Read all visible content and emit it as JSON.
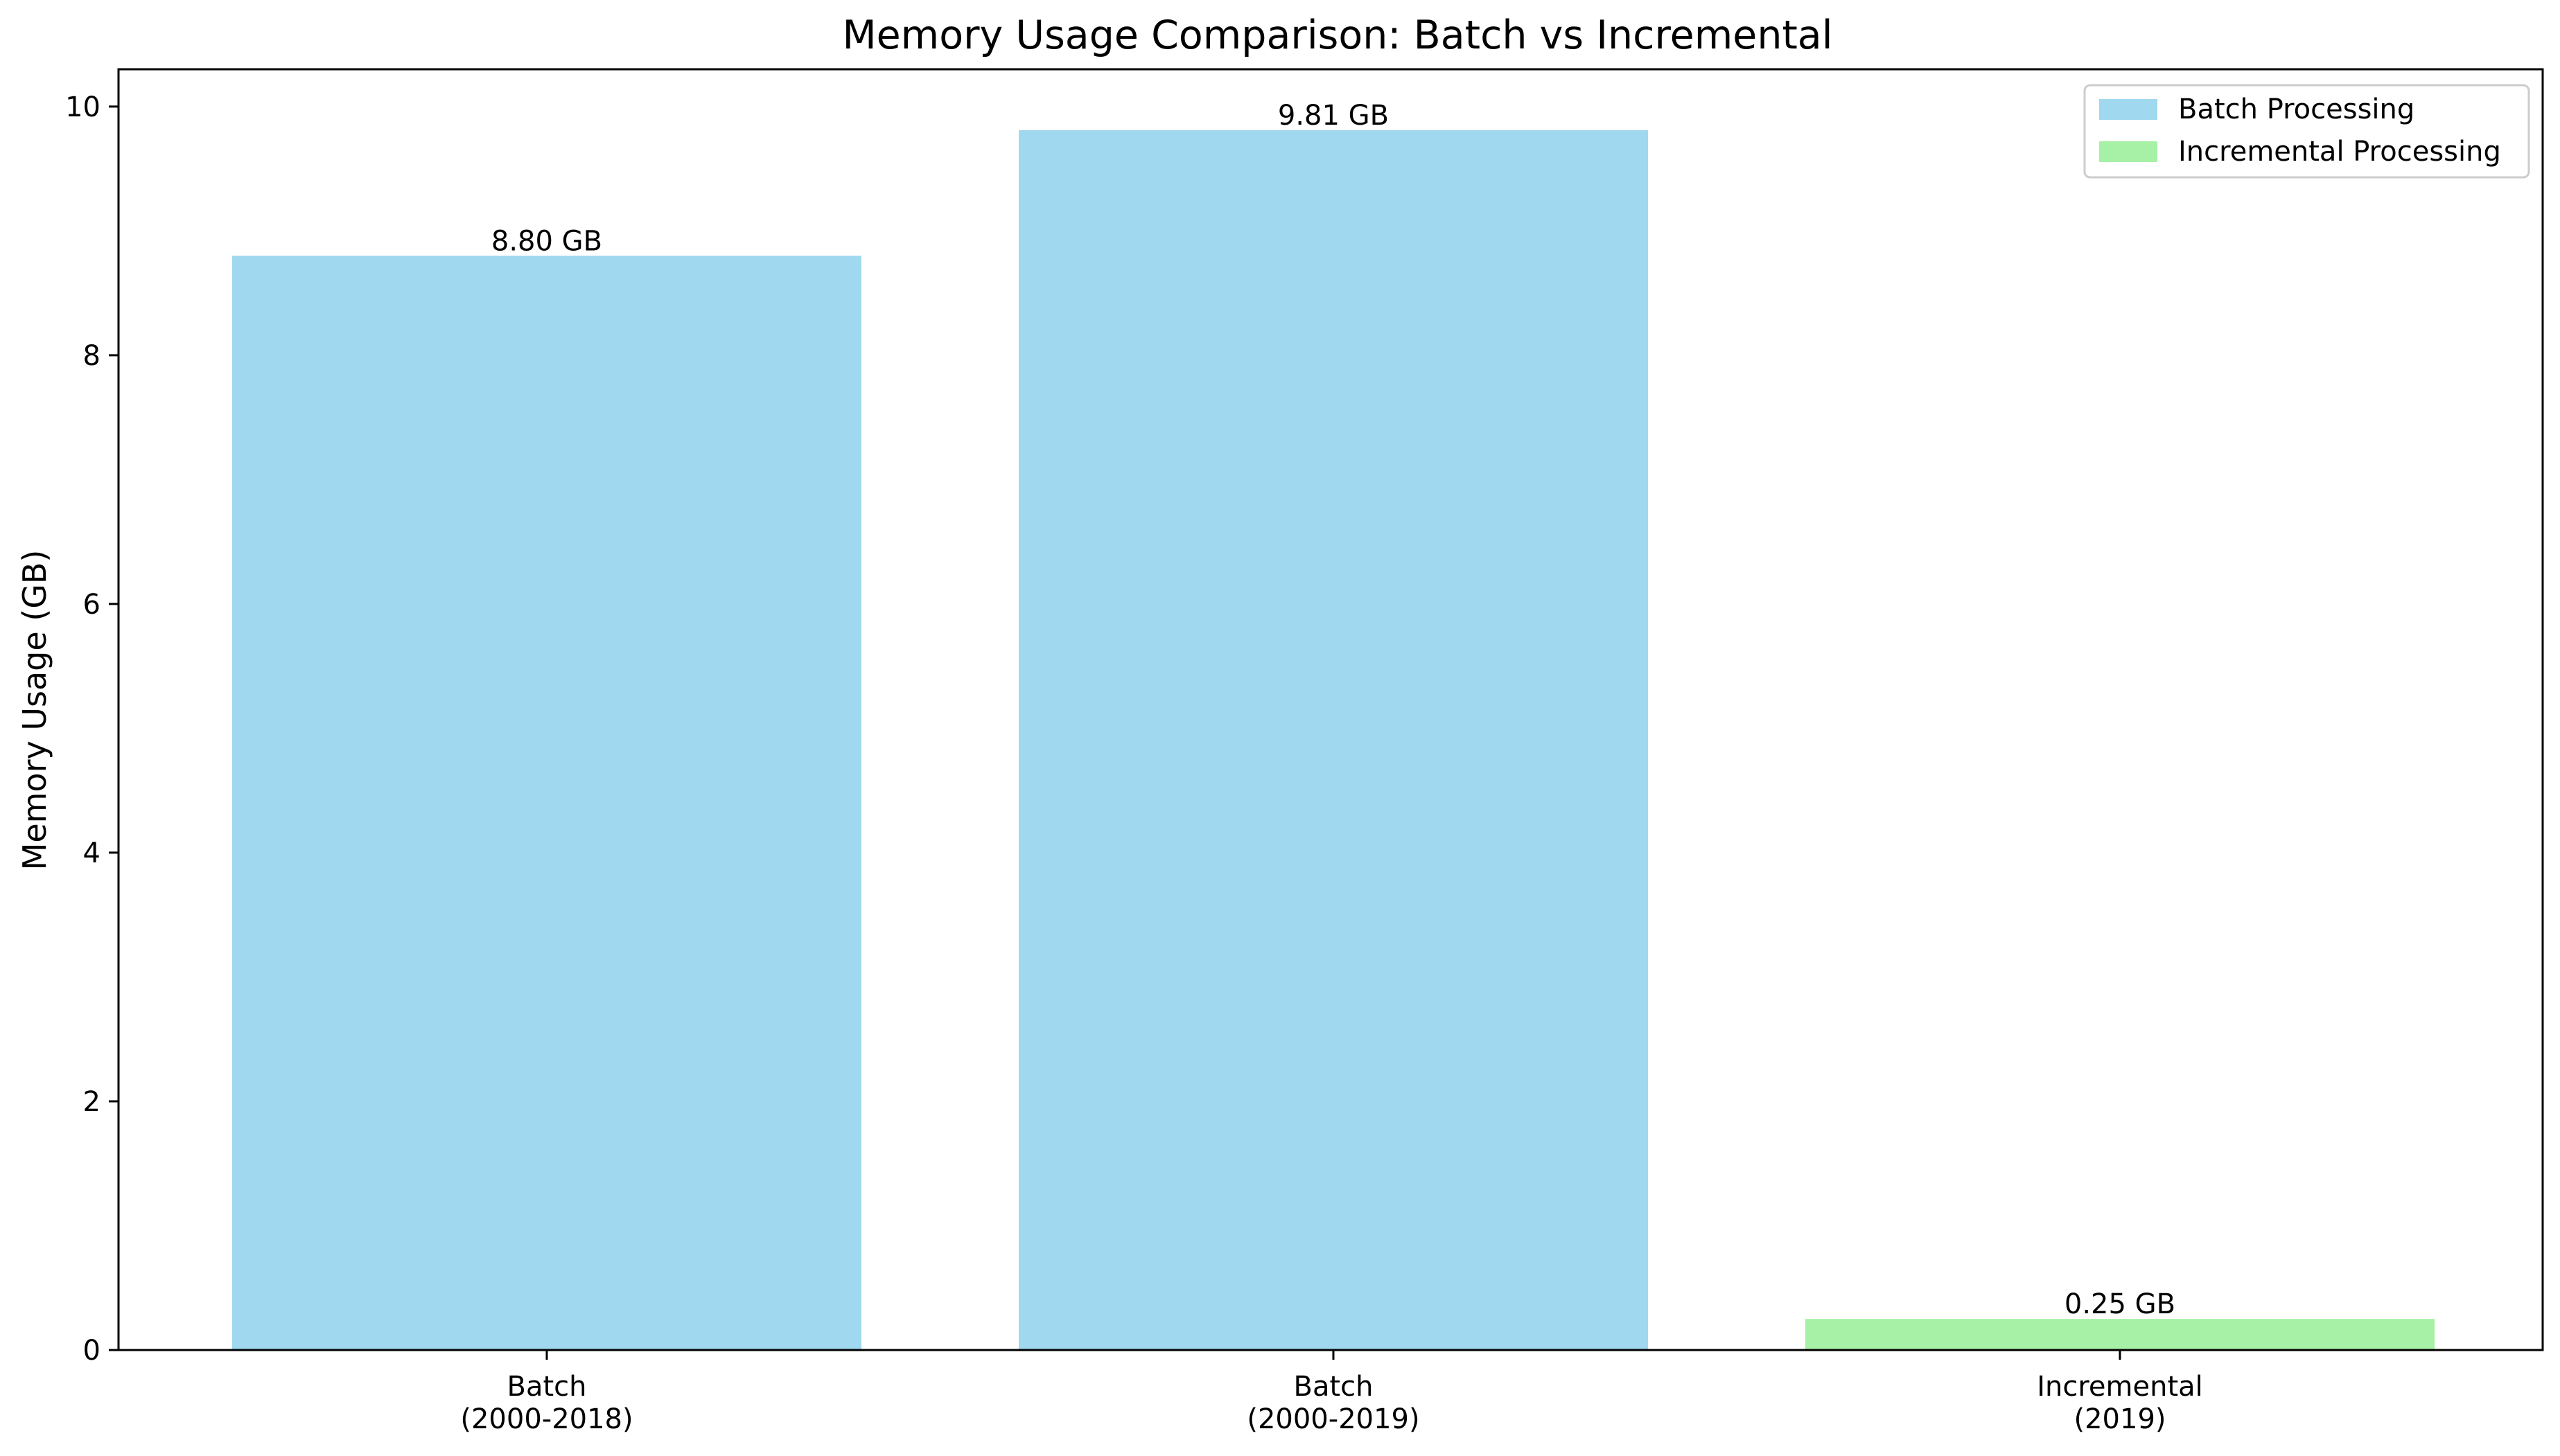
{
  "chart_data": {
    "type": "bar",
    "title": "Memory Usage Comparison: Batch vs Incremental",
    "xlabel": "",
    "ylabel": "Memory Usage (GB)",
    "ylim": [
      0,
      10.3
    ],
    "yticks": [
      0,
      2,
      4,
      6,
      8,
      10
    ],
    "grid": false,
    "legend_position": "top-right",
    "categories": [
      [
        "Batch",
        "(2000-2018)"
      ],
      [
        "Batch",
        "(2000-2019)"
      ],
      [
        "Incremental",
        "(2019)"
      ]
    ],
    "bars": [
      {
        "value": 8.8,
        "label": "8.80 GB",
        "series": "Batch Processing"
      },
      {
        "value": 9.81,
        "label": "9.81 GB",
        "series": "Batch Processing"
      },
      {
        "value": 0.25,
        "label": "0.25 GB",
        "series": "Incremental Processing"
      }
    ],
    "series": [
      {
        "name": "Batch Processing",
        "color": "#87ceeb"
      },
      {
        "name": "Incremental Processing",
        "color": "#90ee90"
      }
    ],
    "bar_opacity": 0.8
  }
}
